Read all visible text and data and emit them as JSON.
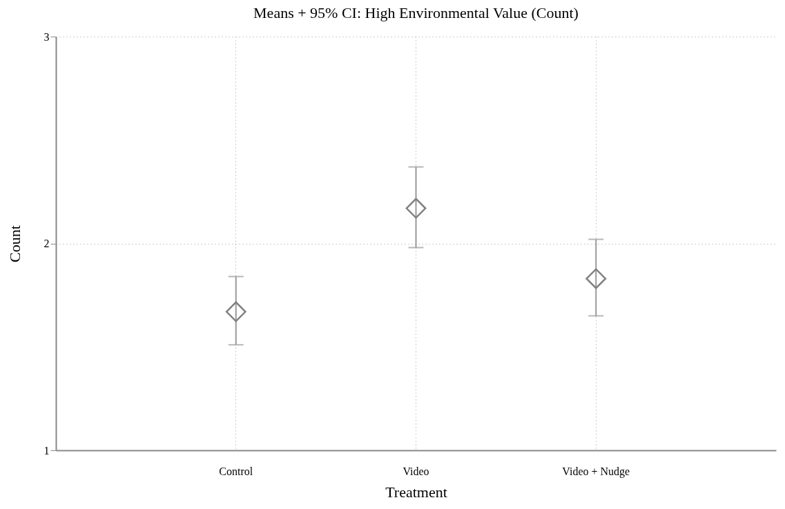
{
  "chart_data": {
    "type": "scatter",
    "title": "Means + 95% CI: High Environmental Value (Count)",
    "xlabel": "Treatment",
    "ylabel": "Count",
    "categories": [
      "Control",
      "Video",
      "Video + Nudge"
    ],
    "series": [
      {
        "color": "#808080",
        "values": [
          1.67,
          2.17,
          1.83
        ],
        "errors": [
          [
            1.51,
            1.84
          ],
          [
            1.98,
            2.37
          ],
          [
            1.65,
            2.02
          ]
        ]
      }
    ],
    "ylim": [
      1,
      3
    ],
    "yticks": [
      1,
      2,
      3
    ],
    "grid": true,
    "marker": "diamond"
  }
}
